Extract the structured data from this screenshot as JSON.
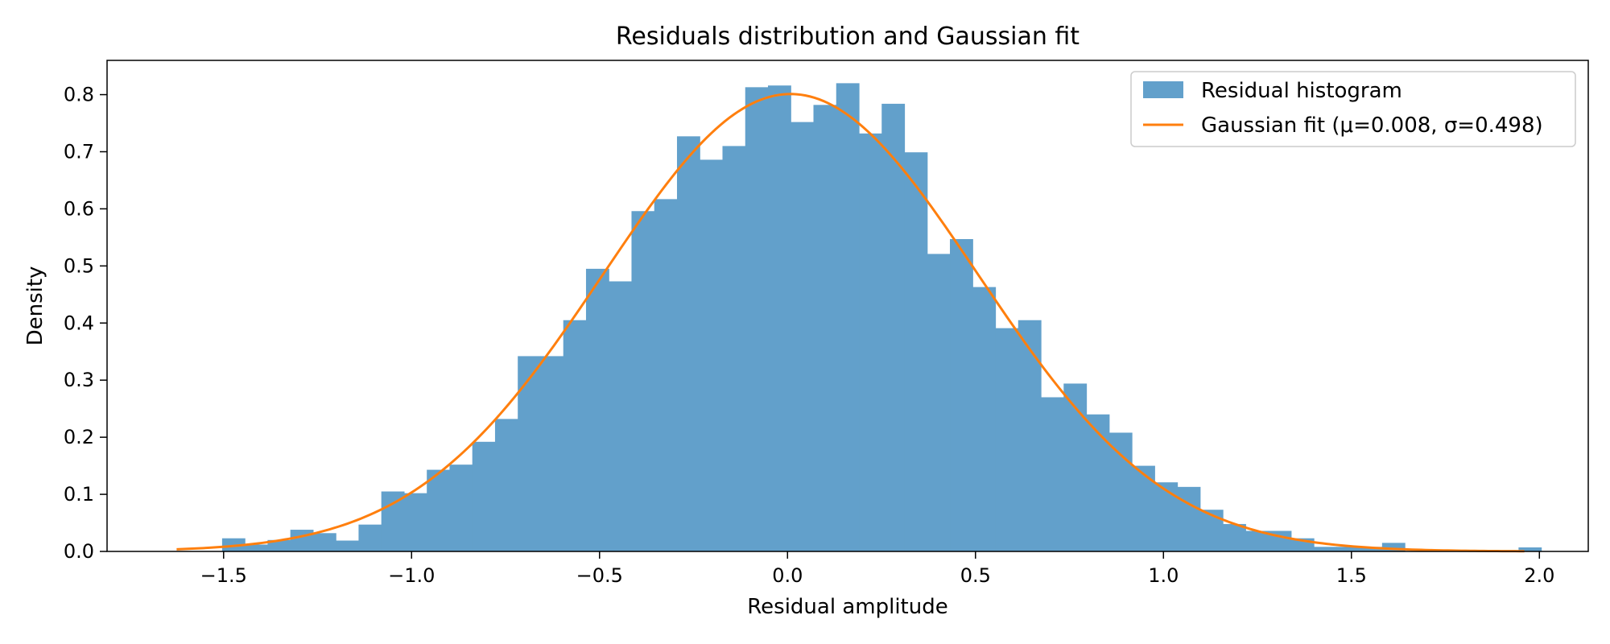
{
  "chart_data": {
    "type": "bar",
    "title": "Residuals distribution and Gaussian fit",
    "xlabel": "Residual amplitude",
    "ylabel": "Density",
    "xlim": [
      -1.81,
      2.13
    ],
    "ylim": [
      0.0,
      0.86
    ],
    "xticks": [
      -1.5,
      -1.0,
      -0.5,
      0.0,
      0.5,
      1.0,
      1.5,
      2.0
    ],
    "xtick_labels": [
      "−1.5",
      "−1.0",
      "−0.5",
      "0.0",
      "0.5",
      "1.0",
      "1.5",
      "2.0"
    ],
    "yticks": [
      0.0,
      0.1,
      0.2,
      0.3,
      0.4,
      0.5,
      0.6,
      0.7,
      0.8
    ],
    "ytick_labels": [
      "0.0",
      "0.1",
      "0.2",
      "0.3",
      "0.4",
      "0.5",
      "0.6",
      "0.7",
      "0.8"
    ],
    "grid": false,
    "legend_position": "top-right",
    "histogram": {
      "name": "Residual histogram",
      "color": "#62a0cb",
      "bin_start": -1.625,
      "bin_width": 0.0605,
      "values": [
        0.0,
        0.0,
        0.023,
        0.012,
        0.02,
        0.038,
        0.032,
        0.019,
        0.047,
        0.105,
        0.102,
        0.143,
        0.152,
        0.192,
        0.232,
        0.342,
        0.342,
        0.405,
        0.495,
        0.473,
        0.596,
        0.617,
        0.727,
        0.686,
        0.71,
        0.813,
        0.816,
        0.752,
        0.782,
        0.82,
        0.732,
        0.784,
        0.699,
        0.521,
        0.547,
        0.463,
        0.391,
        0.405,
        0.27,
        0.294,
        0.24,
        0.208,
        0.15,
        0.121,
        0.113,
        0.073,
        0.048,
        0.036,
        0.036,
        0.023,
        0.008,
        0.008,
        0.008,
        0.015,
        0.0,
        0.0,
        0.0,
        0.0,
        0.0,
        0.007
      ]
    },
    "fit": {
      "name": "Gaussian fit (μ=0.008, σ=0.498)",
      "color": "#ff7f0e",
      "mu": 0.008,
      "sigma": 0.498,
      "x_range": [
        -1.625,
        1.96
      ]
    }
  }
}
